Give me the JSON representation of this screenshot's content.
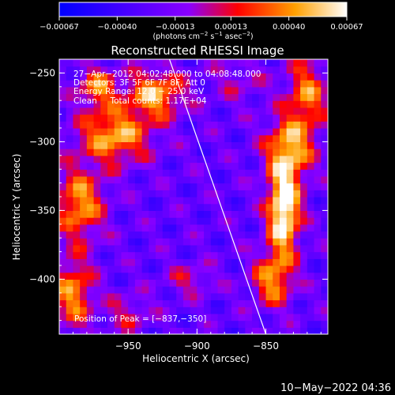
{
  "chart_data": {
    "type": "heatmap",
    "title": "Reconstructed RHESSI Image",
    "xlabel": "Heliocentric X (arcsec)",
    "ylabel": "Heliocentric Y (arcsec)",
    "xlim": [
      -1000,
      -805
    ],
    "ylim": [
      -440,
      -240
    ],
    "x_ticks": [
      {
        "value": -950,
        "label": "−950"
      },
      {
        "value": -900,
        "label": "−900"
      },
      {
        "value": -850,
        "label": "−850"
      }
    ],
    "y_ticks": [
      {
        "value": -250,
        "label": "−250"
      },
      {
        "value": -300,
        "label": "−300"
      },
      {
        "value": -350,
        "label": "−350"
      },
      {
        "value": -400,
        "label": "−400"
      }
    ],
    "colorbar": {
      "ticks": [
        {
          "value": -0.00067,
          "label": "−0.00067"
        },
        {
          "value": -0.0004,
          "label": "−0.00040"
        },
        {
          "value": -0.00013,
          "label": "−0.00013"
        },
        {
          "value": 0.00013,
          "label": "0.00013"
        },
        {
          "value": 0.0004,
          "label": "0.00040"
        },
        {
          "value": 0.00067,
          "label": "0.00067"
        }
      ],
      "range": [
        -0.00067,
        0.00067
      ],
      "colors": [
        "#0000ff",
        "#8a00ff",
        "#ff0000",
        "#ffa000",
        "#ffffff"
      ]
    },
    "annotations": [
      "27−Apr−2012 04:02:48.000 to 04:08:48.000",
      "Detectors: 3F 5F 6F 7F 8F, Att 0",
      "Energy Range: 12.0 − 25.0 keV",
      "Clean     Total counts: 1.17E+04"
    ],
    "peak_label": "Position of Peak = [−837,−350]",
    "limb_line": [
      [
        -920,
        -240
      ],
      [
        -850,
        -440
      ]
    ],
    "sources": [
      {
        "x": -837,
        "y": -350,
        "sx": 8,
        "sy": 22,
        "amp": 1.25
      },
      {
        "x": -833,
        "y": -305,
        "sx": 12,
        "sy": 16,
        "amp": 0.85
      },
      {
        "x": -820,
        "y": -265,
        "sx": 10,
        "sy": 18,
        "amp": 0.7
      },
      {
        "x": -845,
        "y": -400,
        "sx": 10,
        "sy": 14,
        "amp": 0.75
      },
      {
        "x": -960,
        "y": -295,
        "sx": 18,
        "sy": 14,
        "amp": 0.85
      },
      {
        "x": -930,
        "y": -265,
        "sx": 14,
        "sy": 12,
        "amp": 0.85
      },
      {
        "x": -985,
        "y": -345,
        "sx": 12,
        "sy": 18,
        "amp": 0.8
      },
      {
        "x": -972,
        "y": -260,
        "sx": 10,
        "sy": 10,
        "amp": 0.7
      },
      {
        "x": -990,
        "y": -410,
        "sx": 10,
        "sy": 18,
        "amp": 0.75
      },
      {
        "x": -905,
        "y": -400,
        "sx": 12,
        "sy": 8,
        "amp": 0.35
      },
      {
        "x": -950,
        "y": -425,
        "sx": 12,
        "sy": 10,
        "amp": 0.35
      },
      {
        "x": -870,
        "y": -255,
        "sx": 14,
        "sy": 12,
        "amp": 0.25
      }
    ]
  },
  "footer": {
    "date": "10−May−2022 04:36"
  },
  "colorbar_units": {
    "pre": "(photons cm",
    "sup1": "−2",
    "mid1": " s",
    "sup2": "−1",
    "mid2": " asec",
    "sup3": "−2",
    "post": ")"
  }
}
